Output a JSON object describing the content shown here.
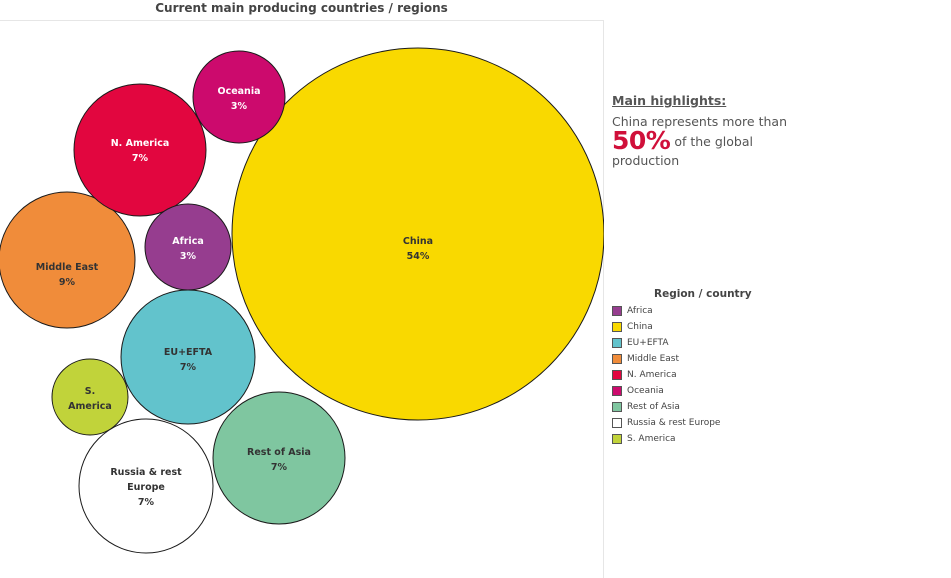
{
  "chart_data": {
    "type": "bubble",
    "title": "Current main producing countries / regions",
    "series": [
      {
        "name": "China",
        "label_lines": [
          "China",
          "54%"
        ],
        "value": 54,
        "color": "#f9d900"
      },
      {
        "name": "Middle East",
        "label_lines": [
          "Middle East",
          "9%"
        ],
        "value": 9,
        "color": "#f08c3a"
      },
      {
        "name": "N. America",
        "label_lines": [
          "N. America",
          "7%"
        ],
        "value": 7,
        "color": "#e2063f"
      },
      {
        "name": "EU+EFTA",
        "label_lines": [
          "EU+EFTA",
          "7%"
        ],
        "value": 7,
        "color": "#62c3cc"
      },
      {
        "name": "Rest of Asia",
        "label_lines": [
          "Rest of Asia",
          "7%"
        ],
        "value": 7,
        "color": "#7fc6a0"
      },
      {
        "name": "Russia & rest Europe",
        "label_lines": [
          "Russia & rest",
          "Europe",
          "7%"
        ],
        "value": 7,
        "color": "#ffffff"
      },
      {
        "name": "Oceania",
        "label_lines": [
          "Oceania",
          "3%"
        ],
        "value": 3,
        "color": "#cc0a6d"
      },
      {
        "name": "Africa",
        "label_lines": [
          "Africa",
          "3%"
        ],
        "value": 3,
        "color": "#963d8f"
      },
      {
        "name": "S. America",
        "label_lines": [
          "S.",
          "America"
        ],
        "value": 2,
        "color": "#c1d33a"
      }
    ],
    "legend": {
      "title": "Region / country",
      "placement": "right",
      "items": [
        {
          "label": "Africa",
          "color": "#963d8f"
        },
        {
          "label": "China",
          "color": "#f9d900"
        },
        {
          "label": "EU+EFTA",
          "color": "#62c3cc"
        },
        {
          "label": "Middle East",
          "color": "#f08c3a"
        },
        {
          "label": "N. America",
          "color": "#e2063f"
        },
        {
          "label": "Oceania",
          "color": "#cc0a6d"
        },
        {
          "label": "Rest of Asia",
          "color": "#7fc6a0"
        },
        {
          "label": "Russia & rest Europe",
          "color": "#ffffff"
        },
        {
          "label": "S. America",
          "color": "#c1d33a"
        }
      ]
    }
  },
  "highlights": {
    "title": "Main highlights:",
    "line1": "China represents more than",
    "big_value": "50%",
    "line2_suffix": " of the global",
    "line3": "production"
  }
}
